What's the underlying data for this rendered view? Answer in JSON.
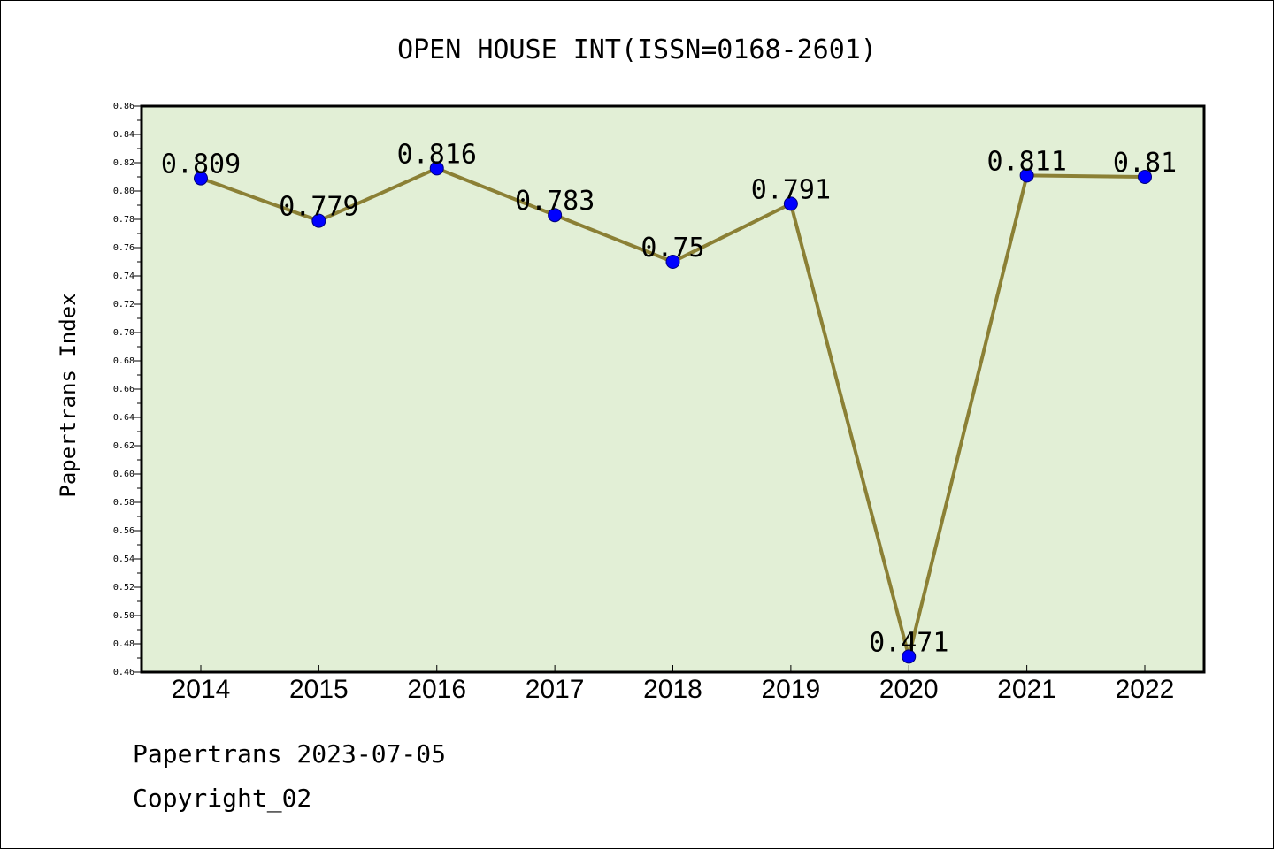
{
  "chart_data": {
    "type": "line",
    "title": "OPEN HOUSE INT(ISSN=0168-2601)",
    "xlabel": "",
    "ylabel": "Papertrans Index",
    "categories": [
      "2014",
      "2015",
      "2016",
      "2017",
      "2018",
      "2019",
      "2020",
      "2021",
      "2022"
    ],
    "series": [
      {
        "values": [
          0.809,
          0.779,
          0.816,
          0.783,
          0.75,
          0.791,
          0.471,
          0.811,
          0.81
        ],
        "labels": [
          "0.809",
          "0.779",
          "0.816",
          "0.783",
          "0.75",
          "0.791",
          "0.471",
          "0.811",
          "0.81"
        ]
      }
    ],
    "ylim": [
      0.46,
      0.86
    ],
    "yticks": [
      "0.46",
      "0.48",
      "0.50",
      "0.52",
      "0.54",
      "0.56",
      "0.58",
      "0.60",
      "0.62",
      "0.64",
      "0.66",
      "0.68",
      "0.70",
      "0.72",
      "0.74",
      "0.76",
      "0.78",
      "0.80",
      "0.82",
      "0.84",
      "0.86"
    ],
    "grid": false,
    "legend": "none",
    "colors": {
      "plot_background": "#e2efd6",
      "line": "#8b8035",
      "marker": "#0000ff"
    }
  },
  "footer": {
    "date_line": "Papertrans 2023-07-05",
    "copyright_line": "Copyright_02"
  }
}
